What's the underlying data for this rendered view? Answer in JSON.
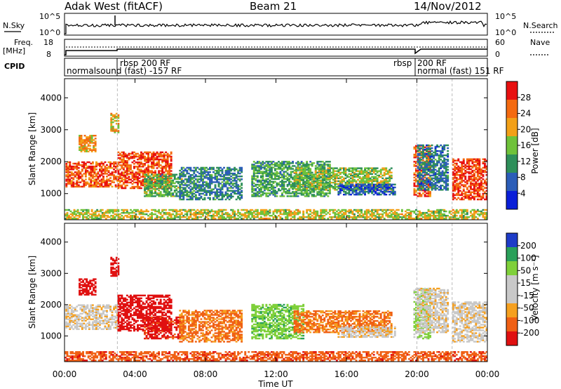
{
  "header": {
    "station": "Adak West (fitACF)",
    "beam": "Beam 21",
    "date": "14/Nov/2012"
  },
  "top_panels": {
    "nsky_label": "N.Sky",
    "nsky_ticks": [
      "10^5",
      "10^0"
    ],
    "nsearch_label": "N.Search",
    "nsearch_ticks": [
      "10^5",
      "10^0"
    ],
    "freq_label": "Freq.",
    "freq_unit": "[MHz]",
    "freq_ticks": [
      "18",
      "8"
    ],
    "nave_label": "Nave",
    "nave_ticks": [
      "60",
      "0"
    ],
    "cpid_label": "CPID",
    "cpid_segments": [
      {
        "label": "normalsound (fast) -157 RF",
        "start_h": 0.0,
        "end_h": 3.0
      },
      {
        "label": "rbsp 200 RF",
        "start_h": 3.0,
        "end_h": 19.9
      },
      {
        "label": "rbsp",
        "start_h": 19.9,
        "end_h": 20.0
      },
      {
        "label": "200 RF",
        "start_h": 20.0,
        "end_h": 22.0
      },
      {
        "label": "normal (fast) 151 RF",
        "start_h": 20.0,
        "end_h": 24.0
      }
    ]
  },
  "chart_data": [
    {
      "type": "heatmap",
      "name": "power",
      "ylabel": "Slant Range [km]",
      "yticks": [
        "1000",
        "2000",
        "3000",
        "4000"
      ],
      "ylim": [
        180,
        4600
      ],
      "colorbar_label": "Power [dB]",
      "colorbar_ticks": [
        "4",
        "8",
        "12",
        "16",
        "20",
        "24",
        "28"
      ],
      "colorbar_colors": [
        "#0a1fd8",
        "#2b5db8",
        "#2e8f5a",
        "#6fc23a",
        "#f2a018",
        "#f46a10",
        "#e81010"
      ],
      "clim": [
        0,
        32
      ],
      "regions": [
        {
          "t0": 0.05,
          "t1": 3.0,
          "r0": 1200,
          "r1": 2000,
          "v": 26
        },
        {
          "t0": 0.8,
          "t1": 1.8,
          "r0": 2300,
          "r1": 2800,
          "v": 22
        },
        {
          "t0": 2.6,
          "t1": 3.1,
          "r0": 2900,
          "r1": 3500,
          "v": 20
        },
        {
          "t0": 3.0,
          "t1": 6.0,
          "r0": 1150,
          "r1": 2300,
          "v": 27
        },
        {
          "t0": 4.5,
          "t1": 6.6,
          "r0": 900,
          "r1": 1600,
          "v": 14
        },
        {
          "t0": 6.5,
          "t1": 10.0,
          "r0": 800,
          "r1": 1800,
          "v": 10
        },
        {
          "t0": 10.6,
          "t1": 15.0,
          "r0": 900,
          "r1": 2000,
          "v": 13
        },
        {
          "t0": 13.0,
          "t1": 18.6,
          "r0": 1100,
          "r1": 1800,
          "v": 16
        },
        {
          "t0": 15.5,
          "t1": 18.8,
          "r0": 950,
          "r1": 1300,
          "v": 6
        },
        {
          "t0": 19.8,
          "t1": 20.8,
          "r0": 900,
          "r1": 2500,
          "v": 26
        },
        {
          "t0": 20.0,
          "t1": 21.8,
          "r0": 1100,
          "r1": 2500,
          "v": 9
        },
        {
          "t0": 22.0,
          "t1": 24.0,
          "r0": 800,
          "r1": 2100,
          "v": 28
        },
        {
          "t0": 0.0,
          "t1": 24.0,
          "r0": 200,
          "r1": 500,
          "v": 18
        }
      ]
    },
    {
      "type": "heatmap",
      "name": "velocity",
      "ylabel": "Slant Range [km]",
      "yticks": [
        "1000",
        "2000",
        "3000",
        "4000"
      ],
      "ylim": [
        180,
        4600
      ],
      "xlabel": "Time UT",
      "xticks": [
        "00:00",
        "04:00",
        "08:00",
        "12:00",
        "16:00",
        "20:00",
        "00:00"
      ],
      "xlim": [
        0,
        24
      ],
      "colorbar_label": "Velocity [m s⁻¹]",
      "colorbar_ticks": [
        "200",
        "100",
        "50",
        "15",
        "-15",
        "-50",
        "-100",
        "-200"
      ],
      "colorbar_colors": [
        "#1e3cc8",
        "#2aa05a",
        "#7fd03a",
        "#c8c8c8",
        "#c8c8c8",
        "#f5a020",
        "#f06014",
        "#e01010"
      ],
      "clim": [
        -250,
        250
      ],
      "regions": [
        {
          "t0": 0.05,
          "t1": 3.0,
          "r0": 1200,
          "r1": 2000,
          "v": 0
        },
        {
          "t0": 0.8,
          "t1": 1.8,
          "r0": 2300,
          "r1": 2800,
          "v": -200
        },
        {
          "t0": 2.6,
          "t1": 3.1,
          "r0": 2900,
          "r1": 3500,
          "v": -150
        },
        {
          "t0": 3.0,
          "t1": 6.0,
          "r0": 1150,
          "r1": 2300,
          "v": -180
        },
        {
          "t0": 4.5,
          "t1": 6.6,
          "r0": 900,
          "r1": 1600,
          "v": -120
        },
        {
          "t0": 6.5,
          "t1": 10.0,
          "r0": 800,
          "r1": 1800,
          "v": -60
        },
        {
          "t0": 10.6,
          "t1": 13.5,
          "r0": 900,
          "r1": 2000,
          "v": 80
        },
        {
          "t0": 13.0,
          "t1": 18.6,
          "r0": 1100,
          "r1": 1800,
          "v": -60
        },
        {
          "t0": 15.5,
          "t1": 18.8,
          "r0": 950,
          "r1": 1300,
          "v": 0
        },
        {
          "t0": 19.8,
          "t1": 20.8,
          "r0": 900,
          "r1": 2500,
          "v": 60
        },
        {
          "t0": 20.0,
          "t1": 21.8,
          "r0": 1100,
          "r1": 2500,
          "v": 0
        },
        {
          "t0": 22.0,
          "t1": 24.0,
          "r0": 800,
          "r1": 2100,
          "v": 0
        },
        {
          "t0": 0.0,
          "t1": 24.0,
          "r0": 200,
          "r1": 500,
          "v": -80
        }
      ]
    }
  ]
}
